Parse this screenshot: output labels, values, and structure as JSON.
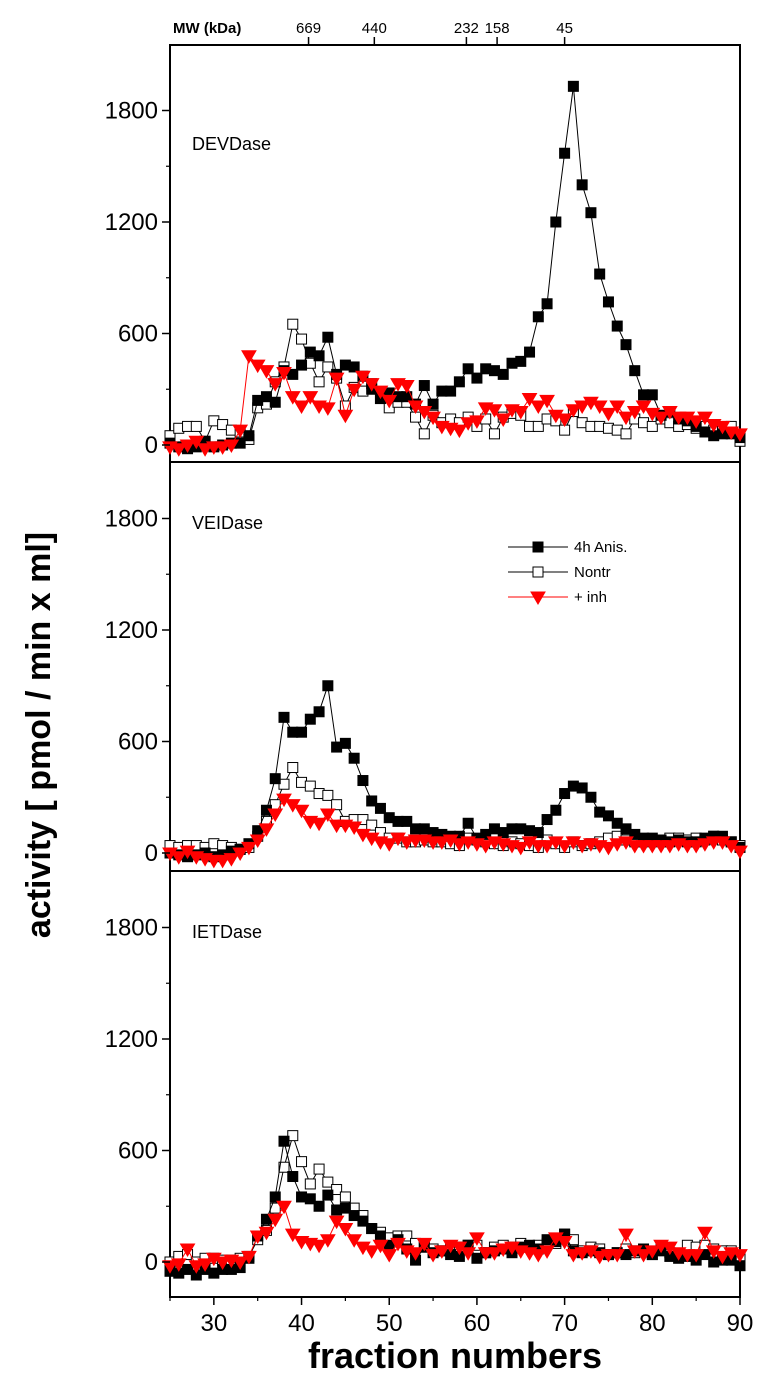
{
  "chart_data": {
    "type": "scatter",
    "xlabel": "fraction numbers",
    "ylabel": "activity [ pmol / min x ml]",
    "xlim": [
      25,
      90
    ],
    "ylim": [
      -100,
      2000
    ],
    "x_ticks": [
      "30",
      "40",
      "50",
      "60",
      "70",
      "80",
      "90"
    ],
    "y_ticks": [
      "0",
      "600",
      "1200",
      "1800"
    ],
    "top_axis": {
      "label": "MW (kDa)",
      "ticks": [
        {
          "label": "669",
          "x": 40.8
        },
        {
          "label": "440",
          "x": 48.3
        },
        {
          "label": "232",
          "x": 58.8
        },
        {
          "label": "158",
          "x": 62.3
        },
        {
          "label": "45",
          "x": 70.0
        }
      ]
    },
    "legend": {
      "placement": "upper-right of middle panel",
      "entries": [
        "4h Anis.",
        "Nontr",
        "+ inh"
      ]
    },
    "series_styles": [
      {
        "key": "anis",
        "marker": "filled-square",
        "color": "#000000"
      },
      {
        "key": "nontr",
        "marker": "open-square",
        "color": "#000000"
      },
      {
        "key": "inh",
        "marker": "filled-down-triangle",
        "color": "#ff0000"
      }
    ],
    "panels": [
      {
        "label": "DEVDase",
        "x": [
          25,
          26,
          27,
          28,
          29,
          30,
          31,
          32,
          33,
          34,
          35,
          36,
          37,
          38,
          39,
          40,
          41,
          42,
          43,
          44,
          45,
          46,
          47,
          48,
          49,
          50,
          51,
          52,
          53,
          54,
          55,
          56,
          57,
          58,
          59,
          60,
          61,
          62,
          63,
          64,
          65,
          66,
          67,
          68,
          69,
          70,
          71,
          72,
          73,
          74,
          75,
          76,
          77,
          78,
          79,
          80,
          81,
          82,
          83,
          84,
          85,
          86,
          87,
          88,
          89,
          90
        ],
        "series": [
          {
            "key": "anis",
            "name": "4h Anis.",
            "values": [
              10,
              -10,
              -20,
              -10,
              20,
              -10,
              0,
              10,
              10,
              50,
              240,
              260,
              230,
              400,
              380,
              430,
              500,
              480,
              580,
              380,
              430,
              420,
              370,
              300,
              250,
              280,
              260,
              260,
              220,
              320,
              220,
              290,
              290,
              340,
              410,
              360,
              410,
              400,
              380,
              440,
              450,
              500,
              690,
              760,
              1200,
              1570,
              1930,
              1400,
              1250,
              920,
              770,
              640,
              540,
              400,
              270,
              270,
              160,
              180,
              140,
              130,
              100,
              70,
              50,
              60,
              60,
              40
            ]
          },
          {
            "key": "nontr",
            "name": "Nontr",
            "values": [
              50,
              90,
              100,
              100,
              20,
              130,
              110,
              80,
              70,
              30,
              200,
              220,
              340,
              420,
              650,
              570,
              440,
              340,
              420,
              360,
              210,
              310,
              290,
              330,
              250,
              200,
              230,
              230,
              150,
              60,
              160,
              120,
              140,
              120,
              150,
              100,
              140,
              60,
              150,
              170,
              160,
              100,
              100,
              140,
              130,
              80,
              180,
              120,
              100,
              100,
              90,
              80,
              60,
              140,
              120,
              100,
              140,
              120,
              100,
              110,
              90,
              100,
              80,
              90,
              100,
              20
            ]
          },
          {
            "key": "inh",
            "name": "+ inh",
            "values": [
              -10,
              -20,
              0,
              20,
              -20,
              -10,
              -10,
              0,
              80,
              480,
              430,
              400,
              330,
              390,
              260,
              210,
              260,
              210,
              200,
              360,
              160,
              300,
              370,
              330,
              290,
              240,
              330,
              320,
              210,
              180,
              150,
              100,
              90,
              80,
              120,
              130,
              200,
              190,
              140,
              190,
              180,
              250,
              210,
              240,
              160,
              140,
              190,
              210,
              230,
              210,
              170,
              210,
              150,
              180,
              210,
              170,
              150,
              180,
              150,
              150,
              130,
              150,
              110,
              100,
              70,
              60
            ]
          }
        ]
      },
      {
        "label": "VEIDase",
        "x": [
          25,
          26,
          27,
          28,
          29,
          30,
          31,
          32,
          33,
          34,
          35,
          36,
          37,
          38,
          39,
          40,
          41,
          42,
          43,
          44,
          45,
          46,
          47,
          48,
          49,
          50,
          51,
          52,
          53,
          54,
          55,
          56,
          57,
          58,
          59,
          60,
          61,
          62,
          63,
          64,
          65,
          66,
          67,
          68,
          69,
          70,
          71,
          72,
          73,
          74,
          75,
          76,
          77,
          78,
          79,
          80,
          81,
          82,
          83,
          84,
          85,
          86,
          87,
          88,
          89,
          90
        ],
        "series": [
          {
            "key": "anis",
            "name": "4h Anis.",
            "values": [
              0,
              -10,
              -20,
              -10,
              0,
              -20,
              -10,
              10,
              20,
              50,
              120,
              230,
              400,
              730,
              650,
              650,
              720,
              760,
              900,
              570,
              590,
              510,
              390,
              280,
              240,
              190,
              170,
              170,
              130,
              130,
              110,
              100,
              90,
              90,
              160,
              80,
              100,
              130,
              110,
              130,
              130,
              120,
              110,
              180,
              230,
              320,
              360,
              350,
              300,
              220,
              200,
              160,
              130,
              100,
              80,
              80,
              70,
              60,
              70,
              60,
              60,
              80,
              90,
              90,
              60,
              30
            ]
          },
          {
            "key": "nontr",
            "name": "Nontr",
            "values": [
              40,
              30,
              40,
              40,
              30,
              50,
              40,
              30,
              20,
              30,
              90,
              170,
              260,
              370,
              460,
              380,
              360,
              320,
              310,
              260,
              170,
              180,
              180,
              150,
              110,
              80,
              80,
              60,
              60,
              70,
              60,
              60,
              50,
              40,
              80,
              70,
              60,
              50,
              40,
              60,
              50,
              40,
              30,
              70,
              50,
              30,
              60,
              40,
              50,
              60,
              80,
              90,
              70,
              60,
              60,
              70,
              60,
              80,
              80,
              70,
              80,
              70,
              90,
              70,
              60,
              40
            ]
          },
          {
            "key": "inh",
            "name": "+ inh",
            "values": [
              0,
              -20,
              10,
              -20,
              -30,
              -40,
              -40,
              -30,
              0,
              30,
              70,
              130,
              210,
              290,
              260,
              230,
              170,
              160,
              210,
              150,
              150,
              140,
              100,
              80,
              60,
              50,
              80,
              60,
              70,
              70,
              60,
              60,
              70,
              50,
              60,
              50,
              40,
              60,
              50,
              40,
              30,
              60,
              40,
              40,
              60,
              40,
              60,
              40,
              50,
              40,
              30,
              50,
              60,
              40,
              40,
              40,
              40,
              40,
              50,
              40,
              40,
              50,
              60,
              60,
              40,
              10
            ]
          }
        ]
      },
      {
        "label": "IETDase",
        "x": [
          25,
          26,
          27,
          28,
          29,
          30,
          31,
          32,
          33,
          34,
          35,
          36,
          37,
          38,
          39,
          40,
          41,
          42,
          43,
          44,
          45,
          46,
          47,
          48,
          49,
          50,
          51,
          52,
          53,
          54,
          55,
          56,
          57,
          58,
          59,
          60,
          61,
          62,
          63,
          64,
          65,
          66,
          67,
          68,
          69,
          70,
          71,
          72,
          73,
          74,
          75,
          76,
          77,
          78,
          79,
          80,
          81,
          82,
          83,
          84,
          85,
          86,
          87,
          88,
          89,
          90
        ],
        "series": [
          {
            "key": "anis",
            "name": "4h Anis.",
            "values": [
              -50,
              -60,
              -40,
              -70,
              -40,
              -60,
              -40,
              -40,
              -30,
              20,
              140,
              230,
              350,
              650,
              460,
              350,
              340,
              300,
              360,
              280,
              290,
              250,
              220,
              180,
              140,
              90,
              120,
              70,
              10,
              80,
              50,
              60,
              40,
              30,
              90,
              20,
              50,
              60,
              70,
              50,
              80,
              90,
              70,
              120,
              110,
              150,
              60,
              50,
              60,
              50,
              40,
              50,
              40,
              60,
              70,
              40,
              60,
              30,
              20,
              30,
              10,
              40,
              0,
              10,
              10,
              -20
            ]
          },
          {
            "key": "nontr",
            "name": "Nontr",
            "values": [
              0,
              30,
              40,
              0,
              20,
              20,
              10,
              10,
              20,
              30,
              120,
              170,
              290,
              510,
              680,
              540,
              420,
              500,
              430,
              390,
              350,
              290,
              250,
              180,
              160,
              130,
              140,
              140,
              100,
              80,
              70,
              60,
              80,
              80,
              90,
              90,
              50,
              80,
              90,
              80,
              100,
              80,
              90,
              100,
              100,
              150,
              120,
              60,
              80,
              70,
              40,
              50,
              70,
              50,
              60,
              40,
              70,
              50,
              40,
              90,
              80,
              90,
              70,
              60,
              60,
              20
            ]
          },
          {
            "key": "inh",
            "name": "+ inh",
            "values": [
              -20,
              -10,
              70,
              -20,
              -10,
              20,
              0,
              10,
              0,
              30,
              140,
              160,
              230,
              300,
              150,
              110,
              100,
              90,
              120,
              220,
              180,
              120,
              80,
              60,
              90,
              40,
              100,
              60,
              50,
              100,
              40,
              60,
              90,
              80,
              50,
              130,
              50,
              50,
              70,
              80,
              60,
              50,
              40,
              60,
              130,
              110,
              40,
              50,
              60,
              30,
              40,
              40,
              150,
              60,
              40,
              60,
              90,
              80,
              50,
              40,
              40,
              160,
              60,
              30,
              50,
              40
            ]
          }
        ]
      }
    ]
  }
}
